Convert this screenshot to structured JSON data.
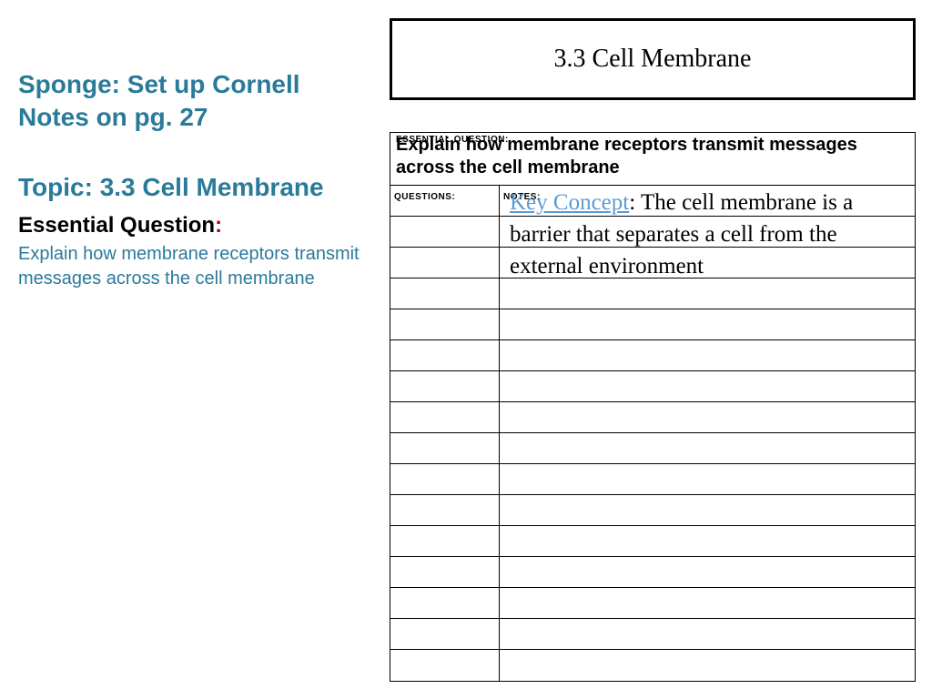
{
  "colors": {
    "teal": "#2a7a9a",
    "red": "#c00000",
    "key_concept": "#5b9bd5",
    "black": "#000000"
  },
  "left": {
    "sponge": "Sponge: Set up Cornell Notes on pg. 27",
    "topic": "Topic: 3.3  Cell Membrane",
    "eq_label": "Essential Question",
    "eq_colon": ":",
    "eq_body": "Explain how membrane receptors transmit messages across the cell membrane"
  },
  "title_box": {
    "text": "3.3 Cell Membrane"
  },
  "cornell": {
    "eq_label": "ESSENTIAL QUESTION:",
    "eq_text": "Explain how membrane receptors transmit messages across the cell membrane",
    "questions_label": "QUESTIONS:",
    "notes_label": "NOTES:",
    "row_count": 16
  },
  "key_concept": {
    "label": "Key Concept",
    "body": ": The cell membrane is a barrier that separates a cell from the external environment"
  }
}
